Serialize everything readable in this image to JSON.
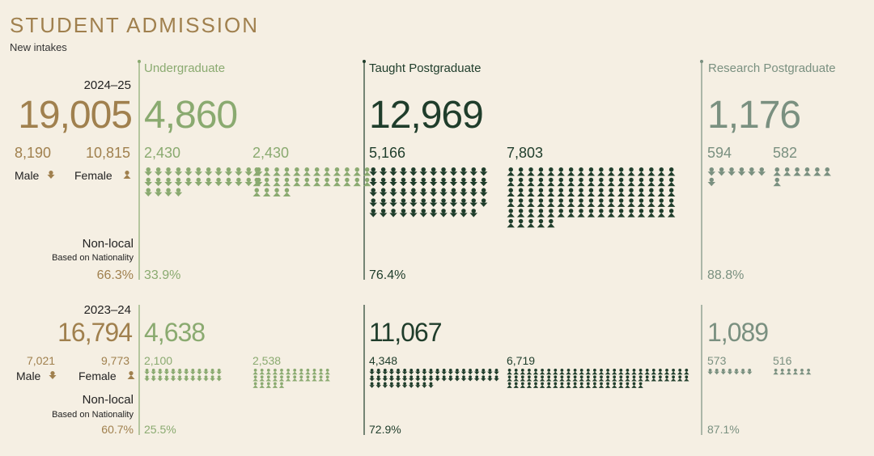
{
  "header": {
    "title": "STUDENT ADMISSION",
    "subtitle": "New intakes"
  },
  "programmes": [
    "Undergraduate",
    "Taught Postgraduate",
    "Research Postgraduate"
  ],
  "years": [
    {
      "year": "2024–25",
      "total": "19,005",
      "male": "8,190",
      "female": "10,815",
      "male_label": "Male",
      "female_label": "Female",
      "nonlocal_label": "Non-local",
      "nonlocal_note": "Based on Nationality",
      "nonlocal": "66.3%",
      "programmes": [
        {
          "total": "4,860",
          "male": "2,430",
          "female": "2,430",
          "nonlocal": "33.9%"
        },
        {
          "total": "12,969",
          "male": "5,166",
          "female": "7,803",
          "nonlocal": "76.4%"
        },
        {
          "total": "1,176",
          "male": "594",
          "female": "582",
          "nonlocal": "88.8%"
        }
      ]
    },
    {
      "year": "2023–24",
      "total": "16,794",
      "male": "7,021",
      "female": "9,773",
      "male_label": "Male",
      "female_label": "Female",
      "nonlocal_label": "Non-local",
      "nonlocal_note": "Based on Nationality",
      "nonlocal": "60.7%",
      "programmes": [
        {
          "total": "4,638",
          "male": "2,100",
          "female": "2,538",
          "nonlocal": "25.5%"
        },
        {
          "total": "11,067",
          "male": "4,348",
          "female": "6,719",
          "nonlocal": "72.9%"
        },
        {
          "total": "1,089",
          "male": "573",
          "female": "516",
          "nonlocal": "87.1%"
        }
      ]
    }
  ]
}
